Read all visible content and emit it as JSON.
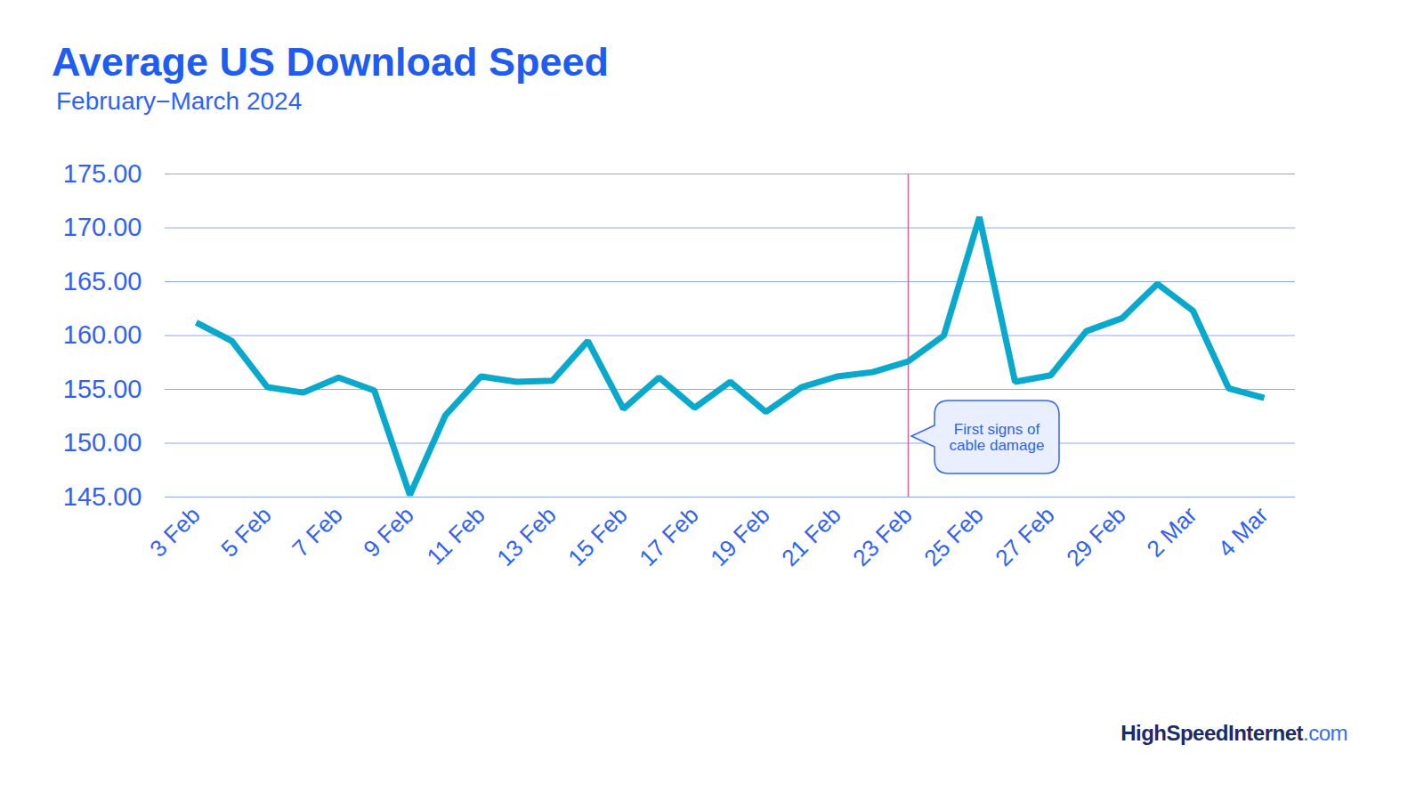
{
  "chart_data": {
    "type": "line",
    "title": "Average US Download Speed",
    "subtitle": "February−March 2024",
    "categories": [
      "3 Feb",
      null,
      "5 Feb",
      null,
      "7 Feb",
      null,
      "9 Feb",
      null,
      "11 Feb",
      null,
      "13 Feb",
      null,
      "15 Feb",
      null,
      "17 Feb",
      null,
      "19 Feb",
      null,
      "21 Feb",
      null,
      "23 Feb",
      null,
      "25 Feb",
      null,
      "27 Feb",
      null,
      "29 Feb",
      null,
      "2 Mar",
      null,
      "4 Mar"
    ],
    "values": [
      161.2,
      159.5,
      155.2,
      154.7,
      156.1,
      154.9,
      145.2,
      152.6,
      156.2,
      155.7,
      155.8,
      159.5,
      153.2,
      156.1,
      153.3,
      155.7,
      152.9,
      155.2,
      156.2,
      156.6,
      157.6,
      160.0,
      171.0,
      155.7,
      156.3,
      160.4,
      161.6,
      164.8,
      162.3,
      155.1,
      154.2
    ],
    "color": "#08a9cc",
    "ylim": [
      145,
      175
    ],
    "yticks": [
      {
        "value": 145,
        "label": "145.00"
      },
      {
        "value": 150,
        "label": "150.00"
      },
      {
        "value": 155,
        "label": "155.00"
      },
      {
        "value": 160,
        "label": "160.00"
      },
      {
        "value": 165,
        "label": "165.00"
      },
      {
        "value": 170,
        "label": "170.00"
      },
      {
        "value": 175,
        "label": "175.00"
      }
    ],
    "grid": true,
    "annotations": [
      {
        "x": "23 Feb",
        "text": "First signs of\ncable damage"
      }
    ],
    "source": "HighSpeedInternet.com"
  }
}
